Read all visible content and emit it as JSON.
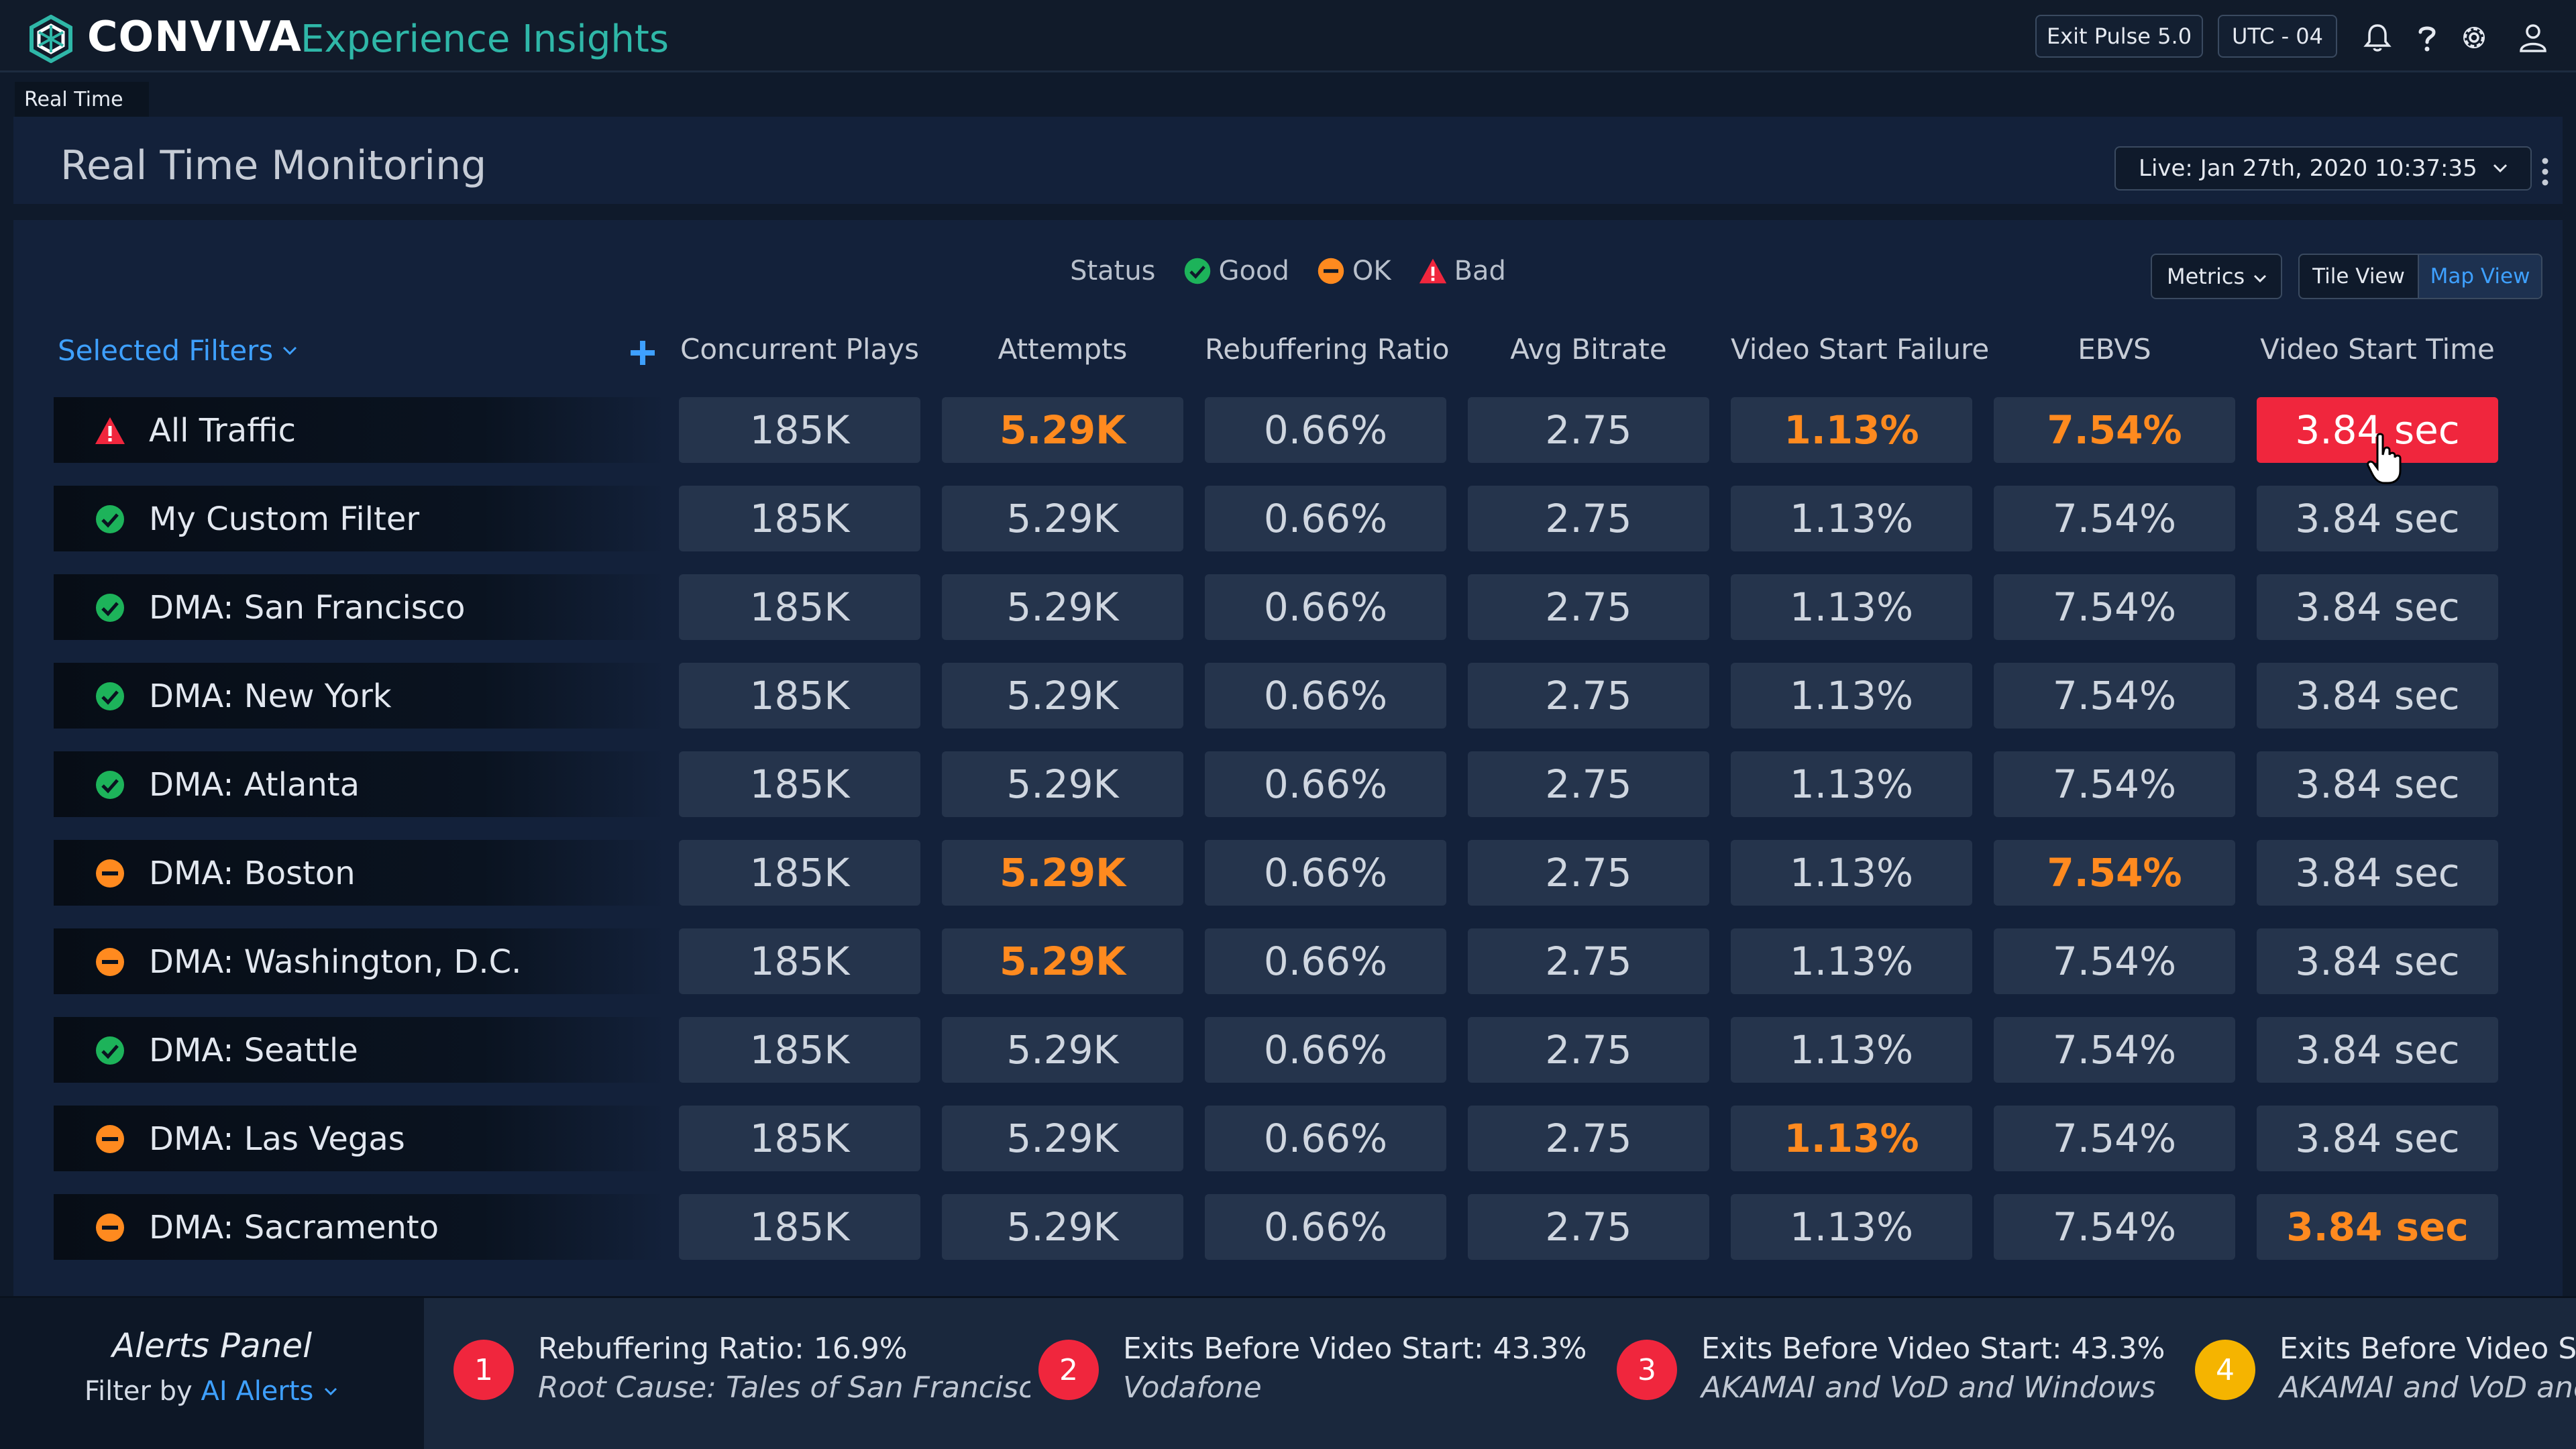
{
  "brand": {
    "name": "CONVIVA",
    "product": "Experience Insights"
  },
  "topbar": {
    "exit_pulse_label": "Exit Pulse 5.0",
    "timezone_label": "UTC - 04"
  },
  "breadcrumb": {
    "tab_label": "Real Time"
  },
  "header": {
    "title": "Real Time Monitoring",
    "live_select_value": "Live:  Jan 27th, 2020 10:37:35"
  },
  "legend": {
    "label": "Status",
    "good": "Good",
    "ok": "OK",
    "bad": "Bad"
  },
  "controls": {
    "metrics_label": "Metrics",
    "tile_view_label": "Tile View",
    "map_view_label": "Map View",
    "selected_view": "Map View"
  },
  "table": {
    "filters_label": "Selected Filters",
    "columns": [
      "Concurrent Plays",
      "Attempts",
      "Rebuffering Ratio",
      "Avg Bitrate",
      "Video Start Failure",
      "EBVS",
      "Video Start Time"
    ],
    "rows": [
      {
        "name": "All Traffic",
        "status": "bad",
        "values": [
          "185K",
          "5.29K",
          "0.66%",
          "2.75",
          "1.13%",
          "7.54%",
          "3.84 sec"
        ],
        "states": [
          "normal",
          "warn",
          "normal",
          "normal",
          "warn",
          "warn",
          "bad"
        ]
      },
      {
        "name": "My Custom Filter",
        "status": "good",
        "values": [
          "185K",
          "5.29K",
          "0.66%",
          "2.75",
          "1.13%",
          "7.54%",
          "3.84 sec"
        ],
        "states": [
          "normal",
          "normal",
          "normal",
          "normal",
          "normal",
          "normal",
          "normal"
        ]
      },
      {
        "name": "DMA: San Francisco",
        "status": "good",
        "values": [
          "185K",
          "5.29K",
          "0.66%",
          "2.75",
          "1.13%",
          "7.54%",
          "3.84 sec"
        ],
        "states": [
          "normal",
          "normal",
          "normal",
          "normal",
          "normal",
          "normal",
          "normal"
        ]
      },
      {
        "name": "DMA: New York",
        "status": "good",
        "values": [
          "185K",
          "5.29K",
          "0.66%",
          "2.75",
          "1.13%",
          "7.54%",
          "3.84 sec"
        ],
        "states": [
          "normal",
          "normal",
          "normal",
          "normal",
          "normal",
          "normal",
          "normal"
        ]
      },
      {
        "name": "DMA: Atlanta",
        "status": "good",
        "values": [
          "185K",
          "5.29K",
          "0.66%",
          "2.75",
          "1.13%",
          "7.54%",
          "3.84 sec"
        ],
        "states": [
          "normal",
          "normal",
          "normal",
          "normal",
          "normal",
          "normal",
          "normal"
        ]
      },
      {
        "name": "DMA: Boston",
        "status": "ok",
        "values": [
          "185K",
          "5.29K",
          "0.66%",
          "2.75",
          "1.13%",
          "7.54%",
          "3.84 sec"
        ],
        "states": [
          "normal",
          "warn",
          "normal",
          "normal",
          "normal",
          "warn",
          "normal"
        ]
      },
      {
        "name": "DMA: Washington, D.C.",
        "status": "ok",
        "values": [
          "185K",
          "5.29K",
          "0.66%",
          "2.75",
          "1.13%",
          "7.54%",
          "3.84 sec"
        ],
        "states": [
          "normal",
          "warn",
          "normal",
          "normal",
          "normal",
          "normal",
          "normal"
        ]
      },
      {
        "name": "DMA: Seattle",
        "status": "good",
        "values": [
          "185K",
          "5.29K",
          "0.66%",
          "2.75",
          "1.13%",
          "7.54%",
          "3.84 sec"
        ],
        "states": [
          "normal",
          "normal",
          "normal",
          "normal",
          "normal",
          "normal",
          "normal"
        ]
      },
      {
        "name": "DMA: Las Vegas",
        "status": "ok",
        "values": [
          "185K",
          "5.29K",
          "0.66%",
          "2.75",
          "1.13%",
          "7.54%",
          "3.84 sec"
        ],
        "states": [
          "normal",
          "normal",
          "normal",
          "normal",
          "warn",
          "normal",
          "normal"
        ]
      },
      {
        "name": "DMA: Sacramento",
        "status": "ok",
        "values": [
          "185K",
          "5.29K",
          "0.66%",
          "2.75",
          "1.13%",
          "7.54%",
          "3.84 sec"
        ],
        "states": [
          "normal",
          "normal",
          "normal",
          "normal",
          "normal",
          "normal",
          "warn"
        ]
      }
    ]
  },
  "alerts": {
    "title": "Alerts Panel",
    "filter_prefix": "Filter by",
    "filter_value": "AI Alerts",
    "items": [
      {
        "number": "1",
        "title": "Rebuffering Ratio: 16.9%",
        "cause": "Root Cause: Tales of San Francisco",
        "color": "#f0263d"
      },
      {
        "number": "2",
        "title": "Exits Before Video Start: 43.3%",
        "cause": "Vodafone",
        "color": "#f0263d"
      },
      {
        "number": "3",
        "title": "Exits Before Video Start: 43.3%",
        "cause": "AKAMAI and VoD and Windows",
        "color": "#f0263d"
      },
      {
        "number": "4",
        "title": "Exits Before Video St",
        "cause": "AKAMAI and VoD and",
        "color": "#f5b400"
      }
    ]
  },
  "colors": {
    "good": "#1db35a",
    "ok": "#ff8a1f",
    "bad": "#f0263d",
    "accent": "#3ea0ff",
    "brand_teal": "#2fb7a8"
  },
  "icons": [
    "conviva-logo-icon",
    "bell-icon",
    "help-icon",
    "gear-icon",
    "user-icon",
    "chevron-down-icon",
    "kebab-menu-icon",
    "plus-icon",
    "status-good-icon",
    "status-ok-icon",
    "status-bad-icon",
    "hand-cursor-icon"
  ]
}
